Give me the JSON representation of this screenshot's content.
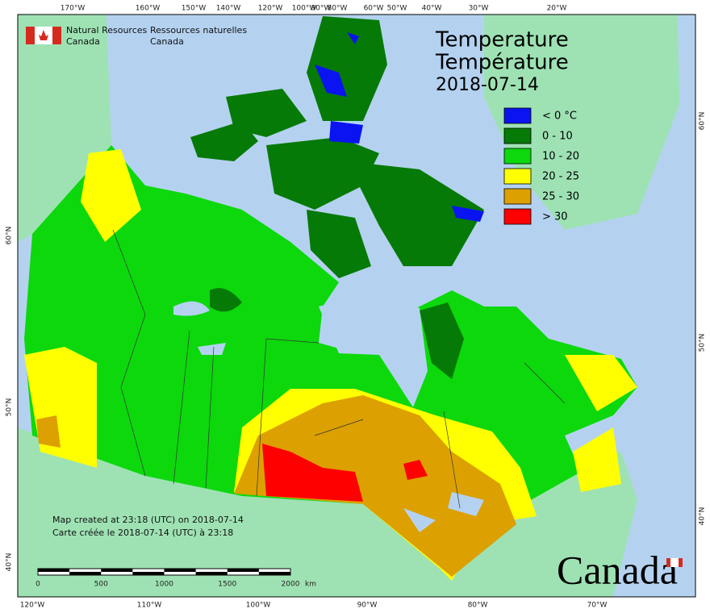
{
  "logo": {
    "english": [
      "Natural Resources",
      "Canada"
    ],
    "french": [
      "Ressources naturelles",
      "Canada"
    ]
  },
  "title": [
    "Temperature",
    "Température"
  ],
  "date": "2018-07-14",
  "legend": [
    {
      "label": "< 0 °C",
      "color": "#0a14f0"
    },
    {
      "label": "0 - 10",
      "color": "#067a06"
    },
    {
      "label": "10 - 20",
      "color": "#0cd80c"
    },
    {
      "label": "20 - 25",
      "color": "#ffff00"
    },
    {
      "label": "25 - 30",
      "color": "#dca000"
    },
    {
      "label": "> 30",
      "color": "#ff0000"
    }
  ],
  "graticule": {
    "top": [
      "170°W",
      "160°W",
      "150°W",
      "140°W",
      "120°W",
      "100°W",
      "90°W",
      "80°W",
      "60°W",
      "50°W",
      "40°W",
      "30°W",
      "20°W"
    ],
    "bottom": [
      "120°W",
      "110°W",
      "100°W",
      "90°W",
      "80°W",
      "70°W"
    ],
    "left": [
      "60°N",
      "50°N",
      "40°N"
    ],
    "right": [
      "60°N",
      "50°N",
      "40°N"
    ]
  },
  "notes": [
    "Map created at 23:18 (UTC) on 2018-07-14",
    "Carte créée le 2018-07-14 (UTC) à 23:18"
  ],
  "scale_bar": {
    "labels": [
      "0",
      "500",
      "1000",
      "1500",
      "2000"
    ],
    "unit": "km"
  },
  "wordmark": "Canada"
}
